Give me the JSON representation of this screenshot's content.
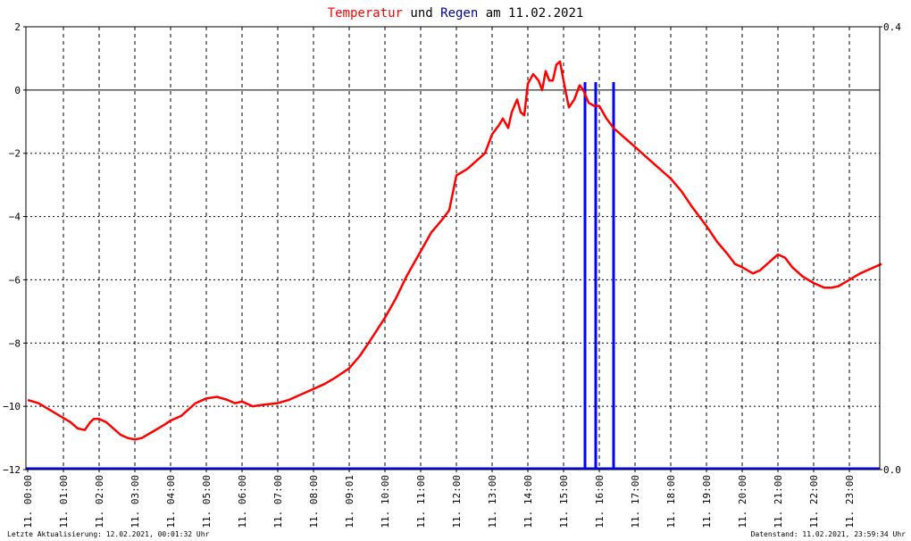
{
  "title": {
    "part1": "Temperatur",
    "part2": " und ",
    "part3": "Regen",
    "part4": " am 11.02.2021"
  },
  "footer": {
    "left": "Letzte Aktualisierung: 12.02.2021, 00:01:32 Uhr",
    "right": "Datenstand: 11.02.2021, 23:59:34 Uhr"
  },
  "colors": {
    "temperature": "#ff0000",
    "rain": "#0000ff",
    "title_temp": "#ff0000",
    "title_rain": "#000099",
    "grid": "#000000"
  },
  "chart_data": {
    "type": "line",
    "title": "Temperatur und Regen am 11.02.2021",
    "grid": true,
    "x_ticks": [
      "11. 00:00",
      "11. 01:00",
      "11. 02:00",
      "11. 03:00",
      "11. 04:00",
      "11. 05:00",
      "11. 06:00",
      "11. 07:00",
      "11. 08:00",
      "11. 09:01",
      "11. 10:00",
      "11. 11:00",
      "11. 12:00",
      "11. 13:00",
      "11. 14:00",
      "11. 15:00",
      "11. 16:00",
      "11. 17:00",
      "11. 18:00",
      "11. 19:00",
      "11. 20:00",
      "11. 21:00",
      "11. 22:00",
      "11. 23:00"
    ],
    "y_left": {
      "range": [
        -12,
        2
      ],
      "ticks": [
        "2",
        "0",
        "−2",
        "−4",
        "−6",
        "−8",
        "−10",
        "−12"
      ],
      "tick_values": [
        2,
        0,
        -2,
        -4,
        -6,
        -8,
        -10,
        -12
      ]
    },
    "y_right": {
      "range": [
        0,
        0.4
      ],
      "ticks": [
        "0.4",
        "0.0"
      ],
      "tick_values": [
        0.4,
        0.0
      ]
    },
    "series": [
      {
        "name": "Temperatur",
        "axis": "left",
        "hours": [
          0,
          0.3,
          0.6,
          0.9,
          1.2,
          1.4,
          1.6,
          1.75,
          1.85,
          2,
          2.2,
          2.4,
          2.6,
          2.8,
          3,
          3.2,
          3.5,
          3.8,
          4,
          4.3,
          4.5,
          4.7,
          5,
          5.3,
          5.6,
          5.8,
          6,
          6.3,
          6.6,
          7,
          7.3,
          7.7,
          8,
          8.3,
          8.6,
          9,
          9.3,
          9.6,
          10,
          10.3,
          10.6,
          11,
          11.3,
          11.6,
          11.8,
          12,
          12.3,
          12.6,
          12.8,
          13,
          13.2,
          13.3,
          13.45,
          13.55,
          13.7,
          13.8,
          13.9,
          14,
          14.15,
          14.3,
          14.4,
          14.5,
          14.6,
          14.7,
          14.8,
          14.9,
          15.05,
          15.15,
          15.3,
          15.45,
          15.55,
          15.7,
          15.85,
          16,
          16.2,
          16.4,
          16.6,
          16.8,
          17,
          17.3,
          17.6,
          17.8,
          18,
          18.3,
          18.6,
          19,
          19.3,
          19.6,
          19.8,
          20,
          20.3,
          20.5,
          20.7,
          20.9,
          21,
          21.2,
          21.4,
          21.7,
          22,
          22.3,
          22.5,
          22.7,
          23,
          23.3,
          23.6,
          23.9
        ],
        "values": [
          -9.8,
          -9.9,
          -10.1,
          -10.3,
          -10.5,
          -10.7,
          -10.75,
          -10.5,
          -10.4,
          -10.4,
          -10.5,
          -10.7,
          -10.9,
          -11.0,
          -11.05,
          -11.0,
          -10.8,
          -10.6,
          -10.45,
          -10.3,
          -10.1,
          -9.9,
          -9.75,
          -9.7,
          -9.8,
          -9.9,
          -9.85,
          -10.0,
          -9.95,
          -9.9,
          -9.8,
          -9.6,
          -9.45,
          -9.3,
          -9.1,
          -8.8,
          -8.4,
          -7.9,
          -7.2,
          -6.6,
          -5.9,
          -5.1,
          -4.5,
          -4.1,
          -3.8,
          -2.7,
          -2.5,
          -2.2,
          -2.0,
          -1.4,
          -1.1,
          -0.9,
          -1.2,
          -0.7,
          -0.3,
          -0.7,
          -0.8,
          0.2,
          0.5,
          0.3,
          0.0,
          0.6,
          0.3,
          0.3,
          0.8,
          0.9,
          0.0,
          -0.55,
          -0.3,
          0.15,
          0.0,
          -0.4,
          -0.5,
          -0.5,
          -0.9,
          -1.2,
          -1.4,
          -1.6,
          -1.8,
          -2.1,
          -2.4,
          -2.6,
          -2.8,
          -3.2,
          -3.7,
          -4.3,
          -4.8,
          -5.2,
          -5.5,
          -5.6,
          -5.8,
          -5.7,
          -5.5,
          -5.3,
          -5.2,
          -5.3,
          -5.6,
          -5.9,
          -6.1,
          -6.25,
          -6.25,
          -6.2,
          -6.0,
          -5.8,
          -5.65,
          -5.5
        ]
      },
      {
        "name": "Regen",
        "axis": "right",
        "bars": [
          {
            "hour": 15.6,
            "value": 0.35
          },
          {
            "hour": 15.9,
            "value": 0.35
          },
          {
            "hour": 16.4,
            "value": 0.35
          }
        ]
      }
    ]
  }
}
